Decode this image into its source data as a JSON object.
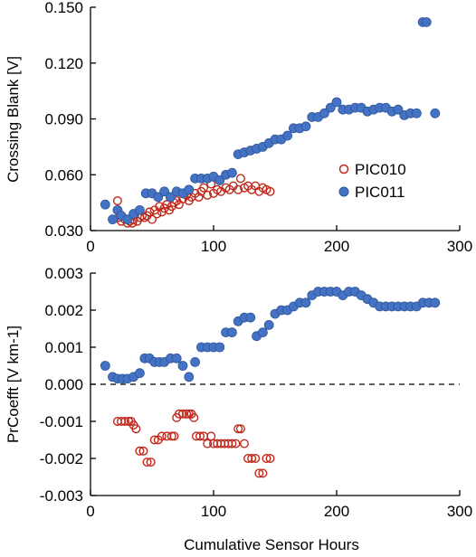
{
  "colors": {
    "PIC010": "#c0281a",
    "PIC011": "#4472c4",
    "PIC011_edge": "#2f5597"
  },
  "chart_data": [
    {
      "type": "scatter",
      "title": "",
      "xlabel": "",
      "ylabel": "Crossing Blank [V]",
      "xlim": [
        0,
        300
      ],
      "ylim": [
        0.03,
        0.15
      ],
      "xticks": [
        "0",
        "100",
        "200",
        "300"
      ],
      "yticks": [
        "0.030",
        "0.060",
        "0.090",
        "0.120",
        "0.150"
      ],
      "legend": "right",
      "series": [
        {
          "name": "PIC010",
          "marker": "open-circle",
          "x": [
            22,
            23,
            25,
            28,
            30,
            32,
            34,
            35,
            38,
            40,
            42,
            44,
            46,
            48,
            50,
            52,
            54,
            56,
            58,
            60,
            62,
            64,
            66,
            68,
            70,
            72,
            75,
            78,
            80,
            82,
            85,
            88,
            90,
            92,
            95,
            98,
            100,
            103,
            106,
            110,
            113,
            116,
            120,
            122,
            125,
            128,
            131,
            134,
            137,
            140,
            143,
            146
          ],
          "y": [
            0.046,
            0.037,
            0.035,
            0.036,
            0.034,
            0.035,
            0.034,
            0.036,
            0.035,
            0.037,
            0.038,
            0.037,
            0.038,
            0.04,
            0.036,
            0.041,
            0.039,
            0.043,
            0.04,
            0.042,
            0.044,
            0.041,
            0.043,
            0.045,
            0.046,
            0.044,
            0.047,
            0.049,
            0.046,
            0.048,
            0.05,
            0.048,
            0.051,
            0.053,
            0.049,
            0.055,
            0.05,
            0.052,
            0.051,
            0.053,
            0.052,
            0.054,
            0.052,
            0.058,
            0.053,
            0.054,
            0.052,
            0.054,
            0.051,
            0.053,
            0.052,
            0.051
          ]
        },
        {
          "name": "PIC011",
          "marker": "filled-circle",
          "x": [
            12,
            18,
            22,
            25,
            30,
            35,
            40,
            45,
            50,
            55,
            60,
            65,
            70,
            75,
            80,
            85,
            90,
            95,
            100,
            105,
            110,
            115,
            120,
            125,
            130,
            135,
            140,
            145,
            150,
            155,
            160,
            165,
            170,
            175,
            180,
            185,
            190,
            195,
            200,
            205,
            210,
            215,
            220,
            225,
            230,
            235,
            240,
            245,
            250,
            255,
            260,
            265,
            270,
            273,
            280
          ],
          "y": [
            0.044,
            0.036,
            0.041,
            0.038,
            0.036,
            0.039,
            0.041,
            0.05,
            0.05,
            0.048,
            0.051,
            0.048,
            0.051,
            0.05,
            0.052,
            0.058,
            0.058,
            0.058,
            0.059,
            0.057,
            0.06,
            0.061,
            0.071,
            0.072,
            0.073,
            0.074,
            0.075,
            0.077,
            0.079,
            0.079,
            0.081,
            0.085,
            0.085,
            0.086,
            0.091,
            0.091,
            0.093,
            0.096,
            0.099,
            0.095,
            0.095,
            0.096,
            0.096,
            0.094,
            0.095,
            0.096,
            0.096,
            0.094,
            0.095,
            0.092,
            0.093,
            0.093,
            0.142,
            0.142,
            0.093
          ]
        }
      ]
    },
    {
      "type": "scatter",
      "title": "",
      "xlabel": "Cumulative Sensor Hours",
      "ylabel": "PrCoefft [V km-1]",
      "xlim": [
        0,
        300
      ],
      "ylim": [
        -0.003,
        0.003
      ],
      "xticks": [
        "0",
        "100",
        "200",
        "300"
      ],
      "yticks": [
        "-0.003",
        "-0.002",
        "-0.001",
        "0.000",
        "0.001",
        "0.002",
        "0.003"
      ],
      "reference_line": {
        "y": 0.0,
        "style": "dashed"
      },
      "series": [
        {
          "name": "PIC010",
          "marker": "open-circle",
          "x": [
            22,
            25,
            28,
            31,
            33,
            35,
            37,
            40,
            43,
            46,
            49,
            52,
            55,
            58,
            62,
            66,
            68,
            70,
            72,
            75,
            78,
            80,
            82,
            84,
            86,
            89,
            92,
            95,
            98,
            100,
            103,
            106,
            109,
            112,
            115,
            118,
            120,
            122,
            125,
            128,
            131,
            134,
            137,
            140,
            143,
            146
          ],
          "y": [
            -0.001,
            -0.001,
            -0.001,
            -0.001,
            -0.001,
            -0.0011,
            -0.0012,
            -0.0018,
            -0.0018,
            -0.0021,
            -0.0021,
            -0.0015,
            -0.0015,
            -0.0014,
            -0.0014,
            -0.0014,
            -0.0014,
            -0.0009,
            -0.0008,
            -0.0008,
            -0.0008,
            -0.0008,
            -0.0008,
            -0.0009,
            -0.0014,
            -0.0014,
            -0.0014,
            -0.0016,
            -0.0014,
            -0.0016,
            -0.0016,
            -0.0016,
            -0.0016,
            -0.0016,
            -0.0016,
            -0.0016,
            -0.0012,
            -0.0012,
            -0.0016,
            -0.002,
            -0.002,
            -0.002,
            -0.0024,
            -0.0024,
            -0.002,
            -0.002
          ]
        },
        {
          "name": "PIC011",
          "marker": "filled-circle",
          "x": [
            12,
            18,
            22,
            26,
            30,
            35,
            40,
            44,
            48,
            52,
            56,
            60,
            65,
            70,
            75,
            80,
            85,
            90,
            95,
            100,
            105,
            110,
            115,
            120,
            125,
            130,
            135,
            140,
            145,
            150,
            155,
            160,
            165,
            170,
            175,
            180,
            185,
            190,
            195,
            200,
            205,
            210,
            215,
            220,
            225,
            230,
            235,
            240,
            245,
            250,
            255,
            260,
            265,
            270,
            275,
            280
          ],
          "y": [
            0.0005,
            0.0002,
            0.00015,
            0.00015,
            0.00015,
            0.0002,
            0.0003,
            0.0007,
            0.0007,
            0.0006,
            0.0006,
            0.0006,
            0.0007,
            0.0007,
            0.0005,
            0.0002,
            0.0006,
            0.001,
            0.001,
            0.001,
            0.001,
            0.0014,
            0.0014,
            0.0017,
            0.0018,
            0.0018,
            0.0013,
            0.0014,
            0.0016,
            0.0019,
            0.002,
            0.002,
            0.0021,
            0.0022,
            0.0022,
            0.0024,
            0.0025,
            0.0025,
            0.0025,
            0.0025,
            0.0024,
            0.0025,
            0.0025,
            0.0024,
            0.0023,
            0.0022,
            0.0021,
            0.0021,
            0.0021,
            0.0021,
            0.0021,
            0.0021,
            0.0021,
            0.0022,
            0.0022,
            0.0022
          ]
        }
      ]
    }
  ]
}
